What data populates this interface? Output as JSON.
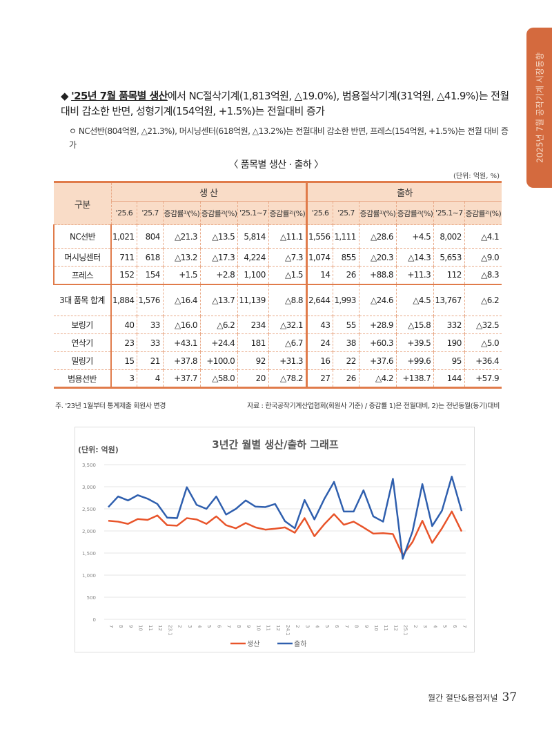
{
  "side_tab": "2025년 7월 공작기계 시장동향",
  "bullet1": {
    "lead": "'25년 7월 품목별 생산",
    "text": "에서 NC절삭기계(1,813억원, △19.0%), 범용절삭기계(31억원, △41.9%)는 전월 대비 감소한 반면, 성형기계(154억원, +1.5%)는 전월대비 증가"
  },
  "bullet2": "ㅇ NC선반(804억원, △21.3%), 머시닝센터(618억원, △13.2%)는 전월대비 감소한 반면, 프레스(154억원, +1.5%)는 전월 대비 증가",
  "table": {
    "title": "〈 품목별 생산 · 출하 〉",
    "unit": "(단위: 억원, %)",
    "category_header": "구분",
    "groups": [
      "생 산",
      "출하"
    ],
    "subheaders": [
      "'25.6",
      "'25.7",
      "증감률¹⁾(%)",
      "증감률²⁾(%)",
      "'25.1~7",
      "증감률²⁾(%)",
      "'25.6",
      "'25.7",
      "증감률¹⁾(%)",
      "증감률²⁾(%)",
      "'25.1~7",
      "증감률²⁾(%)"
    ],
    "rows": [
      {
        "label": "NC선반",
        "values": [
          "1,021",
          "804",
          "△21.3",
          "△13.5",
          "5,814",
          "△11.1",
          "1,556",
          "1,111",
          "△28.6",
          "+4.5",
          "8,002",
          "△4.1"
        ]
      },
      {
        "label": "머시닝센터",
        "values": [
          "711",
          "618",
          "△13.2",
          "△17.3",
          "4,224",
          "△7.3",
          "1,074",
          "855",
          "△20.3",
          "△14.3",
          "5,653",
          "△9.0"
        ]
      },
      {
        "label": "프레스",
        "values": [
          "152",
          "154",
          "+1.5",
          "+2.8",
          "1,100",
          "△1.5",
          "14",
          "26",
          "+88.8",
          "+11.3",
          "112",
          "△8.3"
        ]
      },
      {
        "label": "3대 품목 합계",
        "values": [
          "1,884",
          "1,576",
          "△16.4",
          "△13.7",
          "11,139",
          "△8.8",
          "2,644",
          "1,993",
          "△24.6",
          "△4.5",
          "13,767",
          "△6.2"
        ]
      },
      {
        "label": "보링기",
        "values": [
          "40",
          "33",
          "△16.0",
          "△6.2",
          "234",
          "△32.1",
          "43",
          "55",
          "+28.9",
          "△15.8",
          "332",
          "△32.5"
        ]
      },
      {
        "label": "연삭기",
        "values": [
          "23",
          "33",
          "+43.1",
          "+24.4",
          "181",
          "△6.7",
          "24",
          "38",
          "+60.3",
          "+39.5",
          "190",
          "△5.0"
        ]
      },
      {
        "label": "밀링기",
        "values": [
          "15",
          "21",
          "+37.8",
          "+100.0",
          "92",
          "+31.3",
          "16",
          "22",
          "+37.6",
          "+99.6",
          "95",
          "+36.4"
        ]
      },
      {
        "label": "범용선반",
        "values": [
          "3",
          "4",
          "+37.7",
          "△58.0",
          "20",
          "△78.2",
          "27",
          "26",
          "△4.2",
          "+138.7",
          "144",
          "+57.9"
        ]
      }
    ],
    "note_left": "주. '23년 1월부터 통계제출 회원사 변경",
    "note_right": "자료 : 한국공작기계산업협회(회원사 기준) / 증감률 1)은 전월대비, 2)는 전년동월(동기)대비"
  },
  "chart_data": {
    "type": "line",
    "title": "3년간 월별 생산/출하 그래프",
    "ylabel": "(단위: 억원)",
    "ylim": [
      0,
      3500
    ],
    "yticks": [
      "0",
      "500",
      "1,000",
      "1,500",
      "2,000",
      "2,500",
      "3,000",
      "3,500"
    ],
    "grid": true,
    "legend_position": "bottom",
    "categories": [
      "7",
      "8",
      "9",
      "10",
      "11",
      "12",
      "23.1",
      "2",
      "3",
      "4",
      "5",
      "6",
      "7",
      "8",
      "9",
      "10",
      "11",
      "12",
      "24.1",
      "2",
      "3",
      "4",
      "5",
      "6",
      "7",
      "8",
      "9",
      "10",
      "11",
      "12",
      "25.1",
      "2",
      "3",
      "4",
      "5",
      "6",
      "7"
    ],
    "series": [
      {
        "name": "생산",
        "color": "#e8542a",
        "values": [
          2230,
          2210,
          2160,
          2270,
          2250,
          2350,
          2130,
          2120,
          2290,
          2260,
          2160,
          2330,
          2130,
          2060,
          2180,
          2080,
          2030,
          2050,
          2080,
          1960,
          2290,
          1880,
          2150,
          2380,
          2140,
          2210,
          2080,
          1940,
          1950,
          1930,
          1450,
          1750,
          2230,
          1730,
          2060,
          2440,
          1990
        ]
      },
      {
        "name": "출하",
        "color": "#2f5fae",
        "values": [
          2540,
          2780,
          2690,
          2810,
          2730,
          2610,
          2300,
          2290,
          2990,
          2590,
          2500,
          2780,
          2370,
          2500,
          2690,
          2550,
          2540,
          2610,
          2220,
          2060,
          2700,
          2260,
          2720,
          3110,
          2440,
          2440,
          2920,
          2330,
          2210,
          3180,
          1370,
          1990,
          3060,
          2110,
          2460,
          3230,
          2450
        ]
      }
    ]
  },
  "footer": {
    "magazine": "월간 절단&용접저널",
    "page": "37"
  }
}
